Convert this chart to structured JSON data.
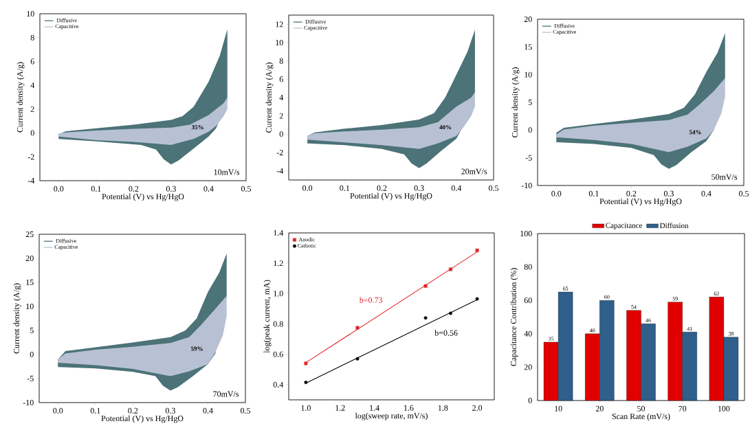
{
  "chart_data": [
    {
      "type": "area",
      "xlabel": "Potential (V) vs Hg/HgO",
      "ylabel": "Current density (A/g)",
      "xlim": [
        -0.05,
        0.5
      ],
      "ylim": [
        -4,
        10
      ],
      "xticks": [
        {
          "value": 0,
          "label": "0.0"
        },
        {
          "value": 0.1,
          "label": "0.1"
        },
        {
          "value": 0.2,
          "label": "0.2"
        },
        {
          "value": 0.3,
          "label": "0.3"
        },
        {
          "value": 0.4,
          "label": "0.4"
        },
        {
          "value": 0.5,
          "label": "0.5"
        }
      ],
      "yticks": [
        -4,
        -2,
        0,
        2,
        4,
        6,
        8,
        10
      ],
      "legend": "top left",
      "series": [
        {
          "name": "Diffusive",
          "color": "#4b7378",
          "x": [
            0,
            0.02,
            0.1,
            0.2,
            0.3,
            0.33,
            0.36,
            0.4,
            0.43,
            0.45,
            0.45,
            0.42,
            0.4,
            0.36,
            0.32,
            0.3,
            0.28,
            0.26,
            0.22,
            0.1,
            0
          ],
          "values": [
            -0.1,
            0.15,
            0.4,
            0.7,
            1.1,
            1.4,
            2.2,
            4.3,
            6.5,
            8.7,
            2.7,
            0.4,
            -0.3,
            -1.3,
            -2.3,
            -2.65,
            -2.2,
            -1.4,
            -1.0,
            -0.7,
            -0.5
          ]
        },
        {
          "name": "Capacitive",
          "color": "#b8c1d3",
          "x": [
            0,
            0.02,
            0.1,
            0.2,
            0.3,
            0.35,
            0.4,
            0.44,
            0.45,
            0.45,
            0.44,
            0.42,
            0.4,
            0.36,
            0.3,
            0.2,
            0.1,
            0
          ],
          "values": [
            -0.05,
            0.05,
            0.2,
            0.35,
            0.45,
            0.7,
            1.5,
            2.5,
            3.0,
            2.0,
            1.4,
            0.6,
            0.1,
            -0.5,
            -1.0,
            -0.75,
            -0.6,
            -0.3
          ]
        }
      ],
      "annotations": [
        "35%",
        "10mV/s"
      ]
    },
    {
      "type": "area",
      "xlabel": "Potential (V) vs Hg/HgO",
      "ylabel": "Current density (A/g)",
      "xlim": [
        -0.05,
        0.5
      ],
      "ylim": [
        -5,
        13
      ],
      "xticks": [
        {
          "value": 0,
          "label": "0.0"
        },
        {
          "value": 0.1,
          "label": "0.1"
        },
        {
          "value": 0.2,
          "label": "0.2"
        },
        {
          "value": 0.3,
          "label": "0.3"
        },
        {
          "value": 0.4,
          "label": "0.4"
        },
        {
          "value": 0.5,
          "label": "0.5"
        }
      ],
      "yticks": [
        -4,
        -2,
        0,
        2,
        4,
        6,
        8,
        10,
        12
      ],
      "legend": "top left",
      "series": [
        {
          "name": "Diffusive",
          "color": "#4b7378",
          "x": [
            0,
            0.02,
            0.1,
            0.2,
            0.3,
            0.34,
            0.37,
            0.4,
            0.43,
            0.45,
            0.45,
            0.42,
            0.4,
            0.36,
            0.32,
            0.3,
            0.28,
            0.26,
            0.2,
            0.1,
            0
          ],
          "values": [
            -0.2,
            0.2,
            0.6,
            1.0,
            1.6,
            2.3,
            4.0,
            6.5,
            9.0,
            11.4,
            4.5,
            1.0,
            -0.5,
            -1.8,
            -3.2,
            -3.7,
            -3.2,
            -2.2,
            -1.6,
            -1.2,
            -1.0
          ]
        },
        {
          "name": "Capacitive",
          "color": "#b8c1d3",
          "x": [
            0,
            0.02,
            0.1,
            0.2,
            0.3,
            0.35,
            0.4,
            0.44,
            0.45,
            0.45,
            0.44,
            0.42,
            0.4,
            0.35,
            0.3,
            0.2,
            0.1,
            0
          ],
          "values": [
            -0.2,
            0.1,
            0.3,
            0.5,
            0.75,
            1.3,
            3.0,
            4.0,
            4.6,
            3.0,
            2.0,
            0.8,
            -0.2,
            -1.0,
            -1.6,
            -1.2,
            -0.9,
            -0.6
          ]
        }
      ],
      "annotations": [
        "40%",
        "20mV/s"
      ]
    },
    {
      "type": "area",
      "xlabel": "Potential (V) vs Hg/HgO",
      "ylabel": "Current density (A/g)",
      "xlim": [
        -0.05,
        0.5
      ],
      "ylim": [
        -10,
        20
      ],
      "xticks": [
        {
          "value": 0,
          "label": "0.0"
        },
        {
          "value": 0.1,
          "label": "0.1"
        },
        {
          "value": 0.2,
          "label": "0.2"
        },
        {
          "value": 0.3,
          "label": "0.3"
        },
        {
          "value": 0.4,
          "label": "0.4"
        },
        {
          "value": 0.5,
          "label": "0.5"
        }
      ],
      "yticks": [
        -10,
        -5,
        0,
        5,
        10,
        15,
        20
      ],
      "legend": "top left",
      "series": [
        {
          "name": "Diffusive",
          "color": "#4b7378",
          "x": [
            0,
            0.02,
            0.1,
            0.2,
            0.3,
            0.34,
            0.37,
            0.4,
            0.43,
            0.45,
            0.45,
            0.42,
            0.4,
            0.36,
            0.32,
            0.3,
            0.28,
            0.26,
            0.2,
            0.1,
            0
          ],
          "values": [
            -0.5,
            0.4,
            1.1,
            1.9,
            2.9,
            4.0,
            6.5,
            10.5,
            14.0,
            17.5,
            9.0,
            0,
            -2.0,
            -4.0,
            -6.3,
            -7.0,
            -6.2,
            -4.5,
            -3.2,
            -2.5,
            -2.2
          ]
        },
        {
          "name": "Capacitive",
          "color": "#b8c1d3",
          "x": [
            0,
            0.02,
            0.1,
            0.2,
            0.3,
            0.35,
            0.38,
            0.42,
            0.45,
            0.45,
            0.44,
            0.42,
            0.4,
            0.35,
            0.3,
            0.2,
            0.1,
            0
          ],
          "values": [
            -0.8,
            0.1,
            0.8,
            1.3,
            1.8,
            2.8,
            4.5,
            7.0,
            9.4,
            6.0,
            3.0,
            0,
            -1.5,
            -3.0,
            -4.0,
            -2.5,
            -1.8,
            -1.3
          ]
        }
      ],
      "annotations": [
        "54%",
        "50mV/s"
      ]
    },
    {
      "type": "area",
      "xlabel": "Potential (V) vs Hg/HgO",
      "ylabel": "Current density (A/g)",
      "xlim": [
        -0.05,
        0.5
      ],
      "ylim": [
        -10,
        25
      ],
      "xticks": [
        {
          "value": 0,
          "label": "0.0"
        },
        {
          "value": 0.1,
          "label": "0.1"
        },
        {
          "value": 0.2,
          "label": "0.2"
        },
        {
          "value": 0.3,
          "label": "0.3"
        },
        {
          "value": 0.4,
          "label": "0.4"
        },
        {
          "value": 0.5,
          "label": "0.5"
        }
      ],
      "yticks": [
        -10,
        -5,
        0,
        5,
        10,
        15,
        20,
        25
      ],
      "legend": "top left",
      "series": [
        {
          "name": "Diffusive",
          "color": "#4b7378",
          "x": [
            0,
            0.02,
            0.1,
            0.2,
            0.3,
            0.34,
            0.37,
            0.4,
            0.43,
            0.45,
            0.45,
            0.42,
            0.4,
            0.36,
            0.32,
            0.3,
            0.28,
            0.26,
            0.2,
            0.1,
            0
          ],
          "values": [
            -1.0,
            0.7,
            1.5,
            2.5,
            3.6,
            5.0,
            7.5,
            13.0,
            17.0,
            21.0,
            12.0,
            0.2,
            -2.0,
            -4.5,
            -6.8,
            -7.5,
            -6.5,
            -4.5,
            -3.6,
            -2.9,
            -2.6
          ]
        },
        {
          "name": "Capacitive",
          "color": "#b8c1d3",
          "x": [
            0,
            0.02,
            0.1,
            0.2,
            0.3,
            0.35,
            0.38,
            0.42,
            0.45,
            0.45,
            0.44,
            0.42,
            0.4,
            0.35,
            0.3,
            0.2,
            0.1,
            0
          ],
          "values": [
            -1.0,
            0.2,
            1.0,
            1.6,
            2.4,
            3.6,
            6.0,
            9.5,
            12.2,
            8.0,
            4.0,
            0.5,
            -2.0,
            -3.5,
            -4.5,
            -3.0,
            -2.2,
            -1.7
          ]
        }
      ],
      "annotations": [
        "59%",
        "70mV/s"
      ]
    },
    {
      "type": "scatter",
      "xlabel": "log(sweep rate, mV/s)",
      "ylabel": "log(peak current, mA)",
      "xlim": [
        0.9,
        2.1
      ],
      "ylim": [
        0.3,
        1.4
      ],
      "xticks": [
        {
          "value": 1,
          "label": "1.0"
        },
        {
          "value": 1.2,
          "label": "1.2"
        },
        {
          "value": 1.4,
          "label": "1.4"
        },
        {
          "value": 1.6,
          "label": "1.6"
        },
        {
          "value": 1.8,
          "label": "1.8"
        },
        {
          "value": 2,
          "label": "2.0"
        }
      ],
      "yticks": [
        {
          "value": 0.4,
          "label": "0.4"
        },
        {
          "value": 0.6,
          "label": "0.6"
        },
        {
          "value": 0.8,
          "label": "0.8"
        },
        {
          "value": 1,
          "label": "1.0"
        },
        {
          "value": 1.2,
          "label": "1.2"
        },
        {
          "value": 1.4,
          "label": "1.4"
        }
      ],
      "legend": "top left",
      "series": [
        {
          "name": "Anodic",
          "color": "#e3242b",
          "marker": "square",
          "x": [
            1,
            1.301,
            1.699,
            1.845,
            2
          ],
          "values": [
            0.54,
            0.775,
            1.05,
            1.16,
            1.285
          ]
        },
        {
          "name": "Cathotic",
          "color": "#000000",
          "marker": "circle",
          "x": [
            1,
            1.301,
            1.699,
            1.845,
            2
          ],
          "values": [
            0.415,
            0.57,
            0.84,
            0.87,
            0.965
          ]
        },
        {
          "type": "line",
          "color": "#e3242b",
          "x": [
            1,
            2
          ],
          "values": [
            0.545,
            1.275
          ]
        },
        {
          "type": "line",
          "color": "#000000",
          "x": [
            1,
            2
          ],
          "values": [
            0.41,
            0.96
          ]
        }
      ],
      "annotations": [
        {
          "text": "b=0.73",
          "x": 1.55,
          "y": 0.94
        },
        {
          "text": "b=0.56",
          "x": 1.77,
          "y": 0.84
        }
      ]
    },
    {
      "type": "bar",
      "xlabel": "Scan Rate (mV/s)",
      "ylabel": "Capacitance Contribution (%)",
      "ylim": [
        0,
        100
      ],
      "yticks": [
        0,
        20,
        40,
        60,
        80,
        100
      ],
      "categories": [
        "10",
        "20",
        "50",
        "70",
        "100"
      ],
      "legend": "top",
      "data_labels": true,
      "series": [
        {
          "name": "Capacitance",
          "color": "#e00000",
          "values": [
            35,
            40,
            54,
            59,
            62
          ]
        },
        {
          "name": "Diffusion",
          "color": "#2f5f8a",
          "values": [
            65,
            60,
            46,
            41,
            38
          ]
        }
      ]
    }
  ]
}
